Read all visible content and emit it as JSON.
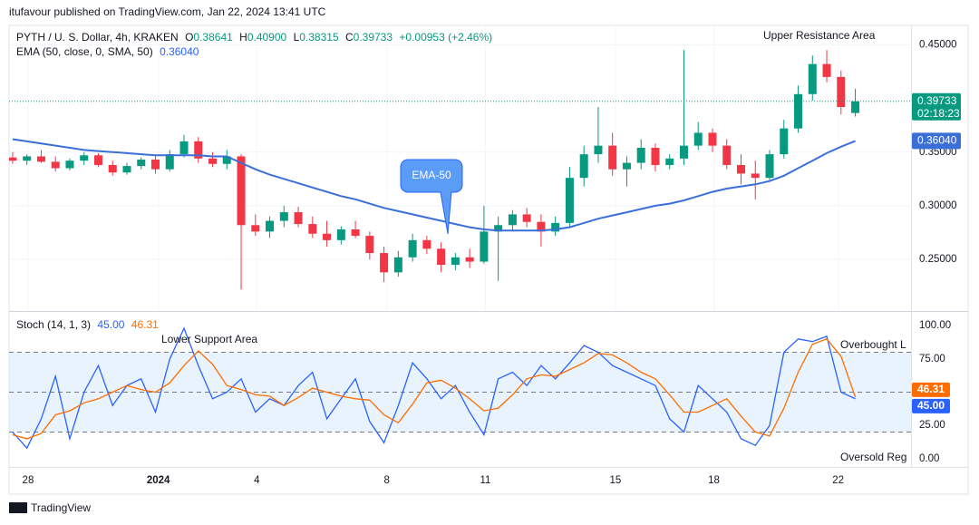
{
  "header": {
    "publisher": "itufavour published on TradingView.com, Jan 22, 2024 13:41 UTC",
    "symbol": "PYTH / U. S. Dollar, 4h, KRAKEN",
    "ohlc": [
      {
        "key": "O",
        "value": "0.38641"
      },
      {
        "key": "H",
        "value": "0.40900"
      },
      {
        "key": "L",
        "value": "0.38315"
      },
      {
        "key": "C",
        "value": "0.39733"
      }
    ],
    "change": "+0.00953 (+2.46%)",
    "ema_legend": "EMA (50, close, 0, SMA, 50)",
    "ema_value": "0.36040"
  },
  "chart_data": [
    {
      "type": "candlestick",
      "xlim": [
        -0.25,
        62.9
      ],
      "xticks": [
        {
          "value": 1.08,
          "label": "28"
        },
        {
          "value": 10.2,
          "label": "2024"
        },
        {
          "value": 17.1,
          "label": "4"
        },
        {
          "value": 26.2,
          "label": "8"
        },
        {
          "value": 33.1,
          "label": "11"
        },
        {
          "value": 42.2,
          "label": "15"
        },
        {
          "value": 49.1,
          "label": "18"
        },
        {
          "value": 57.8,
          "label": "22"
        }
      ],
      "ylim": [
        0.202,
        0.468
      ],
      "yticks": [
        {
          "value": 0.25,
          "label": "0.25000"
        },
        {
          "value": 0.3,
          "label": "0.30000"
        },
        {
          "value": 0.35,
          "label": "0.35000"
        },
        {
          "value": 0.45,
          "label": "0.45000"
        }
      ],
      "grid": true,
      "up_color": "#089981",
      "down_color": "#f23645",
      "open": [
        0.345,
        0.342,
        0.346,
        0.341,
        0.335,
        0.342,
        0.347,
        0.338,
        0.331,
        0.337,
        0.343,
        0.334,
        0.348,
        0.36,
        0.344,
        0.339,
        0.346,
        0.282,
        0.276,
        0.286,
        0.294,
        0.283,
        0.274,
        0.268,
        0.278,
        0.272,
        0.256,
        0.238,
        0.252,
        0.268,
        0.26,
        0.245,
        0.252,
        0.248,
        0.276,
        0.282,
        0.292,
        0.285,
        0.276,
        0.284,
        0.326,
        0.348,
        0.356,
        0.334,
        0.34,
        0.354,
        0.338,
        0.344,
        0.356,
        0.368,
        0.356,
        0.338,
        0.33,
        0.326,
        0.348,
        0.372,
        0.404,
        0.432,
        0.42,
        0.38641
      ],
      "high": [
        0.35,
        0.348,
        0.352,
        0.346,
        0.344,
        0.35,
        0.349,
        0.342,
        0.34,
        0.345,
        0.347,
        0.352,
        0.366,
        0.364,
        0.35,
        0.352,
        0.348,
        0.292,
        0.29,
        0.3,
        0.299,
        0.29,
        0.286,
        0.281,
        0.286,
        0.276,
        0.262,
        0.258,
        0.274,
        0.272,
        0.266,
        0.256,
        0.26,
        0.3,
        0.29,
        0.296,
        0.298,
        0.292,
        0.29,
        0.336,
        0.356,
        0.392,
        0.368,
        0.346,
        0.362,
        0.358,
        0.348,
        0.445,
        0.378,
        0.372,
        0.362,
        0.348,
        0.342,
        0.352,
        0.38,
        0.412,
        0.44,
        0.445,
        0.426,
        0.409
      ],
      "low": [
        0.339,
        0.338,
        0.34,
        0.332,
        0.333,
        0.338,
        0.336,
        0.328,
        0.329,
        0.334,
        0.33,
        0.332,
        0.345,
        0.34,
        0.336,
        0.334,
        0.222,
        0.272,
        0.27,
        0.28,
        0.28,
        0.27,
        0.262,
        0.264,
        0.27,
        0.25,
        0.229,
        0.234,
        0.248,
        0.255,
        0.238,
        0.24,
        0.242,
        0.246,
        0.23,
        0.276,
        0.28,
        0.262,
        0.272,
        0.28,
        0.318,
        0.34,
        0.328,
        0.318,
        0.334,
        0.332,
        0.334,
        0.338,
        0.352,
        0.35,
        0.334,
        0.32,
        0.306,
        0.324,
        0.344,
        0.368,
        0.398,
        0.415,
        0.385,
        0.38315
      ],
      "close": [
        0.342,
        0.346,
        0.341,
        0.335,
        0.342,
        0.347,
        0.338,
        0.331,
        0.337,
        0.343,
        0.334,
        0.348,
        0.36,
        0.344,
        0.339,
        0.346,
        0.282,
        0.276,
        0.286,
        0.294,
        0.283,
        0.274,
        0.268,
        0.278,
        0.272,
        0.256,
        0.238,
        0.252,
        0.268,
        0.26,
        0.245,
        0.252,
        0.248,
        0.276,
        0.282,
        0.292,
        0.285,
        0.276,
        0.284,
        0.326,
        0.348,
        0.356,
        0.334,
        0.34,
        0.354,
        0.338,
        0.344,
        0.356,
        0.368,
        0.356,
        0.338,
        0.33,
        0.326,
        0.348,
        0.372,
        0.404,
        0.432,
        0.42,
        0.392,
        0.39733
      ],
      "last_price_label": "0.39733",
      "countdown": "02:18:23",
      "overlay": {
        "color": "#3b6fd8",
        "label": "0.36040",
        "values": [
          0.362,
          0.36,
          0.358,
          0.356,
          0.354,
          0.352,
          0.351,
          0.35,
          0.349,
          0.348,
          0.347,
          0.347,
          0.347,
          0.347,
          0.346,
          0.346,
          0.34,
          0.334,
          0.329,
          0.325,
          0.321,
          0.317,
          0.313,
          0.309,
          0.306,
          0.302,
          0.298,
          0.295,
          0.292,
          0.289,
          0.286,
          0.283,
          0.28,
          0.278,
          0.277,
          0.277,
          0.277,
          0.277,
          0.278,
          0.28,
          0.284,
          0.288,
          0.291,
          0.294,
          0.297,
          0.3,
          0.302,
          0.305,
          0.309,
          0.313,
          0.316,
          0.318,
          0.32,
          0.323,
          0.328,
          0.335,
          0.342,
          0.349,
          0.355,
          0.3604
        ]
      },
      "annotations": [
        "Upper Resistance Area",
        "EMA-50"
      ]
    },
    {
      "type": "line",
      "title": "Stoch (14, 1, 3)",
      "xlim": [
        -0.25,
        62.9
      ],
      "ylim": [
        -6.2,
        110.3
      ],
      "yticks": [
        {
          "value": 0,
          "label": "0.00"
        },
        {
          "value": 25,
          "label": "25.00"
        },
        {
          "value": 75,
          "label": "75.00"
        },
        {
          "value": 100,
          "label": "100.00"
        }
      ],
      "levels": [
        20,
        50,
        80
      ],
      "band_color": "#e3f0fc",
      "series": [
        {
          "color": "#2962ff",
          "last_label": "45.00",
          "values": [
            20,
            8,
            30,
            62,
            15,
            50,
            70,
            40,
            55,
            60,
            35,
            75,
            98,
            70,
            45,
            50,
            60,
            35,
            45,
            40,
            55,
            65,
            30,
            45,
            60,
            28,
            12,
            40,
            72,
            60,
            45,
            55,
            35,
            18,
            60,
            65,
            55,
            70,
            60,
            72,
            85,
            80,
            70,
            65,
            60,
            55,
            30,
            20,
            55,
            45,
            35,
            15,
            10,
            25,
            80,
            90,
            88,
            92,
            50,
            45
          ]
        },
        {
          "color": "#ff6d00",
          "last_label": "46.31",
          "values": [
            18,
            15,
            19,
            33,
            36,
            42,
            45,
            50,
            55,
            52,
            50,
            57,
            70,
            81,
            71,
            55,
            52,
            48,
            47,
            40,
            46,
            53,
            50,
            47,
            45,
            44,
            33,
            27,
            41,
            57,
            59,
            53,
            45,
            36,
            38,
            48,
            60,
            63,
            62,
            67,
            72,
            79,
            78,
            72,
            65,
            60,
            48,
            35,
            35,
            40,
            45,
            32,
            20,
            17,
            38,
            65,
            86,
            90,
            77,
            46.31
          ]
        }
      ],
      "annotations": [
        "Lower Support Area",
        "Overbought L",
        "Oversold Reg"
      ]
    }
  ],
  "footer": "TradingView"
}
